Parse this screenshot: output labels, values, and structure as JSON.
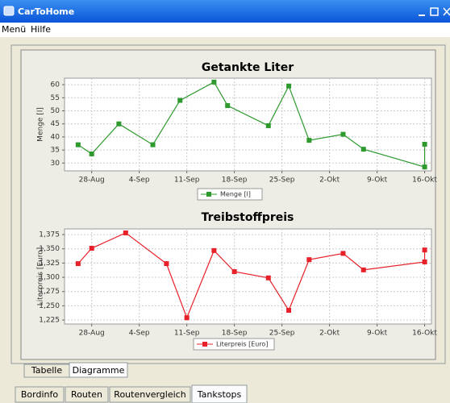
{
  "window": {
    "title": "CarToHome",
    "menu": [
      "Menü",
      "Hilfe"
    ],
    "subtabs": [
      "Tabelle",
      "Diagramme"
    ],
    "tabs": [
      "Bordinfo",
      "Routen",
      "Routenvergleich",
      "Tankstops"
    ]
  },
  "chart_data": [
    {
      "type": "line",
      "title": "Getankte Liter",
      "y_label": "Menge [l]",
      "x": [
        "26-Aug",
        "28-Aug",
        "1-Sep",
        "6-Sep",
        "10-Sep",
        "15-Sep",
        "17-Sep",
        "23-Sep",
        "26-Sep",
        "29-Sep",
        "4-Okt",
        "7-Okt",
        "16-Okt",
        "16-Okt"
      ],
      "series": [
        {
          "name": "Menge [l]",
          "color": "#2e9a2e",
          "values": [
            37,
            33.5,
            45,
            37,
            54,
            61,
            52,
            44.3,
            59.5,
            38.7,
            41,
            35.3,
            28.5,
            37.2
          ]
        }
      ],
      "xlim": [
        "24-Aug",
        "17-Okt"
      ],
      "xticks": [
        "28-Aug",
        "4-Sep",
        "11-Sep",
        "18-Sep",
        "25-Sep",
        "2-Okt",
        "9-Okt",
        "16-Okt"
      ],
      "ylim": [
        27,
        62.5
      ],
      "yticks": [
        30,
        35,
        40,
        45,
        50,
        55,
        60
      ],
      "grid": true
    },
    {
      "type": "line",
      "title": "Treibstoffpreis",
      "y_label": "Literpreis [Euro]",
      "x": [
        "26-Aug",
        "28-Aug",
        "2-Sep",
        "8-Sep",
        "11-Sep",
        "15-Sep",
        "18-Sep",
        "23-Sep",
        "26-Sep",
        "29-Sep",
        "4-Okt",
        "7-Okt",
        "16-Okt",
        "16-Okt"
      ],
      "series": [
        {
          "name": "Literpreis [Euro]",
          "color": "#e8202a",
          "values": [
            1.324,
            1.351,
            1.378,
            1.324,
            1.229,
            1.347,
            1.31,
            1.299,
            1.242,
            1.331,
            1.342,
            1.313,
            1.327,
            1.348
          ]
        }
      ],
      "xlim": [
        "24-Aug",
        "17-Okt"
      ],
      "xticks": [
        "28-Aug",
        "4-Sep",
        "11-Sep",
        "18-Sep",
        "25-Sep",
        "2-Okt",
        "9-Okt",
        "16-Okt"
      ],
      "ylim": [
        1.218,
        1.385
      ],
      "yticks": [
        {
          "value": 1.225,
          "label": "1,225"
        },
        {
          "value": 1.25,
          "label": "1,250"
        },
        {
          "value": 1.275,
          "label": "1,275"
        },
        {
          "value": 1.3,
          "label": "1,300"
        },
        {
          "value": 1.325,
          "label": "1,325"
        },
        {
          "value": 1.35,
          "label": "1,350"
        },
        {
          "value": 1.375,
          "label": "1,375"
        }
      ],
      "grid": true
    }
  ]
}
